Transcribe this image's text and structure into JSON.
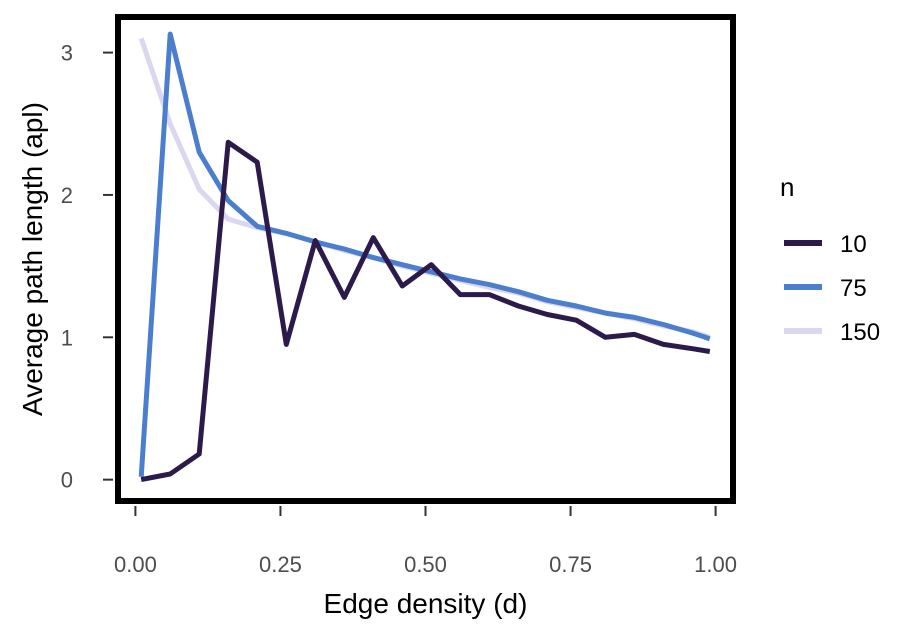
{
  "chart_data": {
    "type": "line",
    "title": "",
    "xlabel": "Edge density (d)",
    "ylabel": "Average path length (apl)",
    "xlim": [
      -0.03,
      1.03
    ],
    "ylim": [
      -0.15,
      3.25
    ],
    "x_ticks": [
      0.0,
      0.25,
      0.5,
      0.75,
      1.0
    ],
    "x_tick_labels": [
      "0.00",
      "0.25",
      "0.50",
      "0.75",
      "1.00"
    ],
    "y_ticks": [
      0,
      1,
      2,
      3
    ],
    "y_tick_labels": [
      "0",
      "1",
      "2",
      "3"
    ],
    "grid": false,
    "legend": {
      "title": "n",
      "position": "right"
    },
    "x": [
      0.01,
      0.06,
      0.11,
      0.16,
      0.21,
      0.26,
      0.31,
      0.36,
      0.41,
      0.46,
      0.51,
      0.56,
      0.61,
      0.66,
      0.71,
      0.76,
      0.81,
      0.86,
      0.91,
      0.96,
      0.99
    ],
    "series": [
      {
        "name": "10",
        "color": "#2c1a4b",
        "values": [
          0.0,
          0.04,
          0.18,
          2.37,
          2.23,
          0.95,
          1.68,
          1.28,
          1.7,
          1.36,
          1.51,
          1.3,
          1.3,
          1.22,
          1.16,
          1.12,
          1.0,
          1.02,
          0.95,
          0.92,
          0.9
        ]
      },
      {
        "name": "75",
        "color": "#4b7fcd",
        "values": [
          0.02,
          3.13,
          2.3,
          1.96,
          1.78,
          1.73,
          1.67,
          1.62,
          1.56,
          1.51,
          1.46,
          1.41,
          1.37,
          1.32,
          1.26,
          1.22,
          1.17,
          1.14,
          1.09,
          1.03,
          0.99
        ]
      },
      {
        "name": "150",
        "color": "#dcd6f0",
        "values": [
          3.1,
          2.5,
          2.04,
          1.83,
          1.77,
          1.73,
          1.67,
          1.61,
          1.56,
          1.5,
          1.45,
          1.4,
          1.35,
          1.31,
          1.25,
          1.21,
          1.17,
          1.13,
          1.08,
          1.04,
          1.0
        ]
      }
    ]
  }
}
